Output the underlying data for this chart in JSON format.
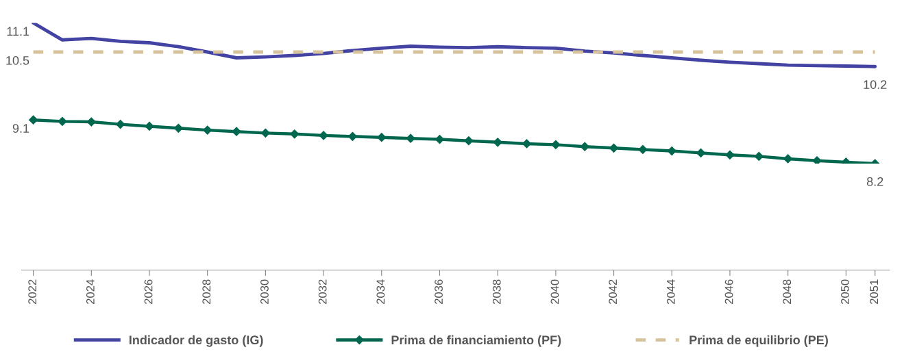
{
  "chart_data": {
    "type": "line",
    "x": [
      2022,
      2023,
      2024,
      2025,
      2026,
      2027,
      2028,
      2029,
      2030,
      2031,
      2032,
      2033,
      2034,
      2035,
      2036,
      2037,
      2038,
      2039,
      2040,
      2041,
      2042,
      2043,
      2044,
      2045,
      2046,
      2047,
      2048,
      2049,
      2050,
      2051
    ],
    "xlim": [
      2021.6,
      2051.5
    ],
    "xticks": [
      2022,
      2024,
      2026,
      2028,
      2030,
      2032,
      2034,
      2036,
      2038,
      2040,
      2042,
      2044,
      2046,
      2048,
      2050,
      2051
    ],
    "tick_labels": "x",
    "grid": false,
    "legend": "bottom",
    "series": [
      {
        "name": "Indicador de gasto (IG)",
        "color": "#4343a3",
        "marker": "none",
        "line_style": "solid",
        "values": [
          11.1,
          10.75,
          10.78,
          10.72,
          10.69,
          10.61,
          10.5,
          10.38,
          10.4,
          10.43,
          10.47,
          10.53,
          10.58,
          10.62,
          10.6,
          10.59,
          10.61,
          10.59,
          10.58,
          10.52,
          10.48,
          10.43,
          10.38,
          10.33,
          10.29,
          10.26,
          10.23,
          10.22,
          10.21,
          10.2
        ],
        "value_labels": [
          "11.1",
          null,
          null,
          null,
          null,
          null,
          null,
          null,
          null,
          null,
          null,
          null,
          null,
          null,
          null,
          null,
          null,
          null,
          null,
          null,
          null,
          null,
          null,
          null,
          null,
          null,
          null,
          null,
          null,
          "10.2"
        ]
      },
      {
        "name": "Prima de financiamiento (PF)",
        "color": "#00674f",
        "marker": "diamond",
        "line_style": "solid",
        "values": [
          9.1,
          9.07,
          9.06,
          9.01,
          8.97,
          8.93,
          8.89,
          8.86,
          8.83,
          8.81,
          8.78,
          8.76,
          8.74,
          8.72,
          8.7,
          8.67,
          8.64,
          8.61,
          8.59,
          8.55,
          8.52,
          8.49,
          8.46,
          8.42,
          8.38,
          8.35,
          8.3,
          8.26,
          8.23,
          8.2
        ],
        "value_labels": [
          "9.1",
          null,
          null,
          null,
          null,
          null,
          null,
          null,
          null,
          null,
          null,
          null,
          null,
          null,
          null,
          null,
          null,
          null,
          null,
          null,
          null,
          null,
          null,
          null,
          null,
          null,
          null,
          null,
          null,
          "8.2"
        ]
      },
      {
        "name": "Prima de equilibrio (PE)",
        "color": "#d6c29b",
        "marker": "none",
        "line_style": "dashed",
        "values": [
          10.5,
          10.5,
          10.5,
          10.5,
          10.5,
          10.5,
          10.5,
          10.5,
          10.5,
          10.5,
          10.5,
          10.5,
          10.5,
          10.5,
          10.5,
          10.5,
          10.5,
          10.5,
          10.5,
          10.5,
          10.5,
          10.5,
          10.5,
          10.5,
          10.5,
          10.5,
          10.5,
          10.5,
          10.5,
          10.5
        ],
        "value_labels": [
          "10.5",
          null,
          null,
          null,
          null,
          null,
          null,
          null,
          null,
          null,
          null,
          null,
          null,
          null,
          null,
          null,
          null,
          null,
          null,
          null,
          null,
          null,
          null,
          null,
          null,
          null,
          null,
          null,
          null,
          null
        ]
      }
    ]
  }
}
